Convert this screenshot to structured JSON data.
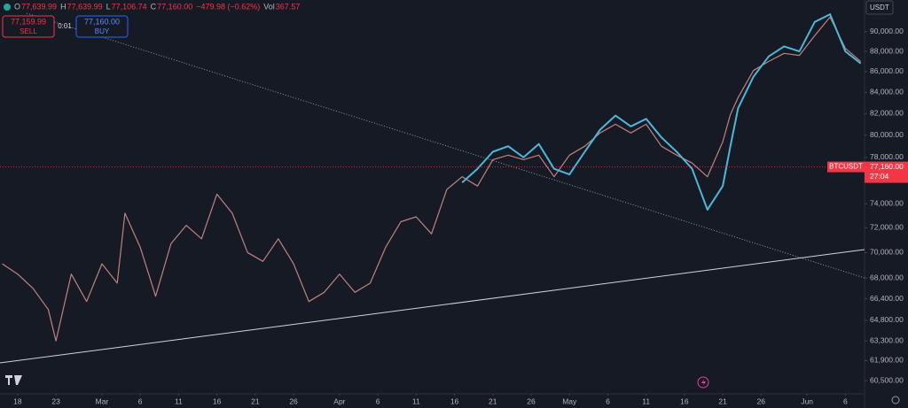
{
  "header": {
    "ohlc": [
      {
        "key": "O",
        "value": "77,639.99"
      },
      {
        "key": "H",
        "value": "77,639.99"
      },
      {
        "key": "L",
        "value": "77,106.74"
      },
      {
        "key": "C",
        "value": "77,160.00"
      }
    ],
    "change": "−479.98 (−0.62%)",
    "vol_key": "Vol",
    "vol": "367.57",
    "sell_price": "77,159.99",
    "sell": "SELL",
    "spread": "0.01",
    "buy_price": "77,160.00",
    "buy": "BUY",
    "currency": "USDT"
  },
  "chart_data": {
    "type": "line",
    "log_scale": true,
    "grid": false,
    "x": [
      -2,
      0,
      2,
      4,
      5,
      7,
      9,
      11,
      13,
      14,
      16,
      18,
      20,
      22,
      24,
      26,
      28,
      30,
      32,
      34,
      36,
      38,
      40,
      42,
      44,
      46,
      48,
      50,
      52,
      54,
      56,
      58,
      60,
      62,
      64,
      66,
      68,
      70,
      72,
      74,
      76,
      78,
      80,
      82,
      84,
      86,
      88,
      90,
      92,
      93,
      94,
      96,
      98,
      100,
      102,
      104,
      106,
      108,
      110
    ],
    "series": [
      {
        "name": "BTCUSDT",
        "color": "#c0827f",
        "values": [
          69100,
          68300,
          67200,
          65600,
          63300,
          68300,
          66200,
          69100,
          67600,
          73200,
          70400,
          66600,
          70700,
          72200,
          71100,
          74800,
          73200,
          70000,
          69300,
          71100,
          69100,
          66200,
          66900,
          68300,
          66900,
          67600,
          70400,
          72500,
          72900,
          71500,
          75200,
          76300,
          75500,
          77800,
          78200,
          77800,
          78200,
          76300,
          78200,
          79000,
          80200,
          81000,
          80200,
          81000,
          79000,
          78200,
          77500,
          76300,
          79400,
          81900,
          83500,
          86100,
          87000,
          87800,
          87600,
          89600,
          91500,
          88300,
          87000
        ]
      },
      {
        "color": "#4fb6d8",
        "values": [
          null,
          null,
          null,
          null,
          null,
          null,
          null,
          null,
          null,
          null,
          null,
          null,
          null,
          null,
          null,
          null,
          null,
          null,
          null,
          null,
          null,
          null,
          null,
          null,
          null,
          null,
          null,
          null,
          null,
          null,
          null,
          75800,
          77000,
          78500,
          79000,
          78000,
          79200,
          77000,
          76500,
          78500,
          80500,
          81800,
          80800,
          81500,
          79800,
          78500,
          77000,
          73500,
          75500,
          79000,
          82500,
          85500,
          87500,
          88500,
          88000,
          91000,
          91800,
          88000,
          86800
        ]
      }
    ],
    "xlim": [
      -2.3,
      110.5
    ],
    "xticks": [
      {
        "value": 0,
        "label": "18"
      },
      {
        "value": 5,
        "label": "23"
      },
      {
        "value": 11,
        "label": "Mar"
      },
      {
        "value": 16,
        "label": "6"
      },
      {
        "value": 21,
        "label": "11"
      },
      {
        "value": 26,
        "label": "16"
      },
      {
        "value": 31,
        "label": "21"
      },
      {
        "value": 36,
        "label": "26"
      },
      {
        "value": 42,
        "label": "Apr"
      },
      {
        "value": 47,
        "label": "6"
      },
      {
        "value": 52,
        "label": "11"
      },
      {
        "value": 57,
        "label": "16"
      },
      {
        "value": 62,
        "label": "21"
      },
      {
        "value": 67,
        "label": "26"
      },
      {
        "value": 72,
        "label": "May"
      },
      {
        "value": 77,
        "label": "6"
      },
      {
        "value": 82,
        "label": "11"
      },
      {
        "value": 87,
        "label": "16"
      },
      {
        "value": 92,
        "label": "21"
      },
      {
        "value": 97,
        "label": "26"
      },
      {
        "value": 103,
        "label": "Jun"
      },
      {
        "value": 108,
        "label": "6"
      }
    ],
    "ylim": [
      59600,
      93300
    ],
    "yticks": [
      {
        "value": 90000,
        "label": "90,000.00"
      },
      {
        "value": 88000,
        "label": "88,000.00"
      },
      {
        "value": 86000,
        "label": "86,000.00"
      },
      {
        "value": 84000,
        "label": "84,000.00"
      },
      {
        "value": 82000,
        "label": "82,000.00"
      },
      {
        "value": 80000,
        "label": "80,000.00"
      },
      {
        "value": 78000,
        "label": "78,000.00"
      },
      {
        "value": 74000,
        "label": "74,000.00"
      },
      {
        "value": 72000,
        "label": "72,000.00"
      },
      {
        "value": 70000,
        "label": "70,000.00"
      },
      {
        "value": 68000,
        "label": "68,000.00"
      },
      {
        "value": 66400,
        "label": "66,400.00"
      },
      {
        "value": 64800,
        "label": "64,800.00"
      },
      {
        "value": 63300,
        "label": "63,300.00"
      },
      {
        "value": 61900,
        "label": "61,900.00"
      },
      {
        "value": 60500,
        "label": "60,500.00"
      }
    ],
    "last_price": {
      "value": 77160,
      "label": "77,160.00"
    },
    "symbol": "BTCUSDT",
    "countdown": "27:04"
  }
}
